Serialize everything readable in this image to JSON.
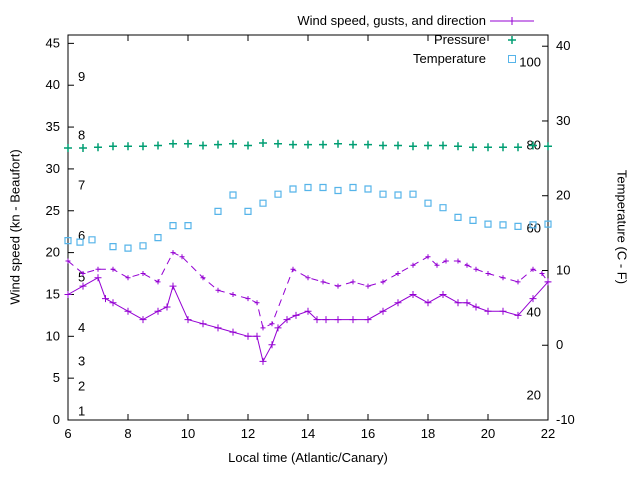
{
  "chart_data": {
    "type": "line",
    "title": "",
    "xlabel": "Local time (Atlantic/Canary)",
    "ylabel_left": "Wind speed (kn - Beaufort)",
    "ylabel_right": "Temperature (C - F)",
    "xlim": [
      6,
      22
    ],
    "ylim_left": [
      0,
      46
    ],
    "ylim_right": [
      -10,
      41.5
    ],
    "x_ticks": [
      6,
      8,
      10,
      12,
      14,
      16,
      18,
      20,
      22
    ],
    "y_ticks_left": [
      0,
      5,
      10,
      15,
      20,
      25,
      30,
      35,
      40,
      45
    ],
    "y_ticks_right": [
      -10,
      0,
      10,
      20,
      30,
      40
    ],
    "grid": false,
    "legend_position": "top-right-inside",
    "beaufort_labels": [
      {
        "text": "1",
        "kn": 1
      },
      {
        "text": "2",
        "kn": 4
      },
      {
        "text": "3",
        "kn": 7
      },
      {
        "text": "4",
        "kn": 11
      },
      {
        "text": "5",
        "kn": 17
      },
      {
        "text": "6",
        "kn": 22
      },
      {
        "text": "7",
        "kn": 28
      },
      {
        "text": "8",
        "kn": 34
      },
      {
        "text": "9",
        "kn": 41
      }
    ],
    "fahrenheit_labels": [
      {
        "text": "20",
        "c": -6.7
      },
      {
        "text": "40",
        "c": 4.4
      },
      {
        "text": "60",
        "c": 15.6
      },
      {
        "text": "80",
        "c": 26.7
      },
      {
        "text": "100",
        "c": 37.8
      }
    ],
    "legend": [
      {
        "label": "Wind speed, gusts, and direction",
        "color": "#9400d3",
        "marker": "line-plus"
      },
      {
        "label": "Pressure",
        "color": "#009e73",
        "marker": "plus"
      },
      {
        "label": "Temperature",
        "color": "#56b4e9",
        "marker": "square"
      }
    ],
    "series": [
      {
        "name": "wind_speed",
        "axis": "left",
        "color": "#9400d3",
        "style": "solid-line-plus",
        "points": [
          [
            6,
            15
          ],
          [
            6.5,
            16
          ],
          [
            7,
            17
          ],
          [
            7.25,
            14.5
          ],
          [
            7.5,
            14
          ],
          [
            8,
            13
          ],
          [
            8.5,
            12
          ],
          [
            9,
            13
          ],
          [
            9.3,
            13.5
          ],
          [
            9.5,
            16
          ],
          [
            10,
            12
          ],
          [
            10.5,
            11.5
          ],
          [
            11,
            11
          ],
          [
            11.5,
            10.5
          ],
          [
            12,
            10
          ],
          [
            12.3,
            10
          ],
          [
            12.5,
            7
          ],
          [
            12.8,
            9
          ],
          [
            13,
            11
          ],
          [
            13.3,
            12
          ],
          [
            13.6,
            12.5
          ],
          [
            14,
            13
          ],
          [
            14.3,
            12
          ],
          [
            14.6,
            12
          ],
          [
            15,
            12
          ],
          [
            15.5,
            12
          ],
          [
            16,
            12
          ],
          [
            16.5,
            13
          ],
          [
            17,
            14
          ],
          [
            17.5,
            15
          ],
          [
            18,
            14
          ],
          [
            18.5,
            15
          ],
          [
            19,
            14
          ],
          [
            19.3,
            14
          ],
          [
            19.6,
            13.5
          ],
          [
            20,
            13
          ],
          [
            20.5,
            13
          ],
          [
            21,
            12.5
          ],
          [
            21.5,
            14.5
          ],
          [
            22,
            16.5
          ]
        ]
      },
      {
        "name": "gusts",
        "axis": "left",
        "color": "#9400d3",
        "style": "dashed-line-plus",
        "points": [
          [
            6,
            19
          ],
          [
            6.5,
            17.5
          ],
          [
            7,
            18
          ],
          [
            7.5,
            18
          ],
          [
            8,
            17
          ],
          [
            8.5,
            17.5
          ],
          [
            9,
            16.5
          ],
          [
            9.5,
            20
          ],
          [
            9.8,
            19.5
          ],
          [
            10.5,
            17
          ],
          [
            11,
            15.5
          ],
          [
            11.5,
            15
          ],
          [
            12,
            14.5
          ],
          [
            12.3,
            14
          ],
          [
            12.5,
            11
          ],
          [
            12.8,
            11.5
          ],
          [
            13.5,
            18
          ],
          [
            14,
            17
          ],
          [
            14.5,
            16.5
          ],
          [
            15,
            16
          ],
          [
            15.5,
            16.5
          ],
          [
            16,
            16
          ],
          [
            16.5,
            16.5
          ],
          [
            17,
            17.5
          ],
          [
            17.5,
            18.5
          ],
          [
            18,
            19.5
          ],
          [
            18.3,
            18.5
          ],
          [
            18.6,
            19
          ],
          [
            19,
            19
          ],
          [
            19.3,
            18.5
          ],
          [
            19.6,
            18
          ],
          [
            20,
            17.5
          ],
          [
            20.5,
            17
          ],
          [
            21,
            16.5
          ],
          [
            21.5,
            18
          ],
          [
            21.8,
            17.5
          ],
          [
            22,
            16.5
          ]
        ]
      },
      {
        "name": "pressure",
        "axis": "left",
        "color": "#009e73",
        "style": "points-plus",
        "points": [
          [
            6,
            32.5
          ],
          [
            6.5,
            32.5
          ],
          [
            7,
            32.6
          ],
          [
            7.5,
            32.7
          ],
          [
            8,
            32.7
          ],
          [
            8.5,
            32.7
          ],
          [
            9,
            32.8
          ],
          [
            9.5,
            33
          ],
          [
            10,
            33
          ],
          [
            10.5,
            32.8
          ],
          [
            11,
            32.9
          ],
          [
            11.5,
            33
          ],
          [
            12,
            32.8
          ],
          [
            12.5,
            33.1
          ],
          [
            13,
            33
          ],
          [
            13.5,
            32.9
          ],
          [
            14,
            32.9
          ],
          [
            14.5,
            32.9
          ],
          [
            15,
            33
          ],
          [
            15.5,
            32.9
          ],
          [
            16,
            32.9
          ],
          [
            16.5,
            32.8
          ],
          [
            17,
            32.8
          ],
          [
            17.5,
            32.7
          ],
          [
            18,
            32.8
          ],
          [
            18.5,
            32.8
          ],
          [
            19,
            32.7
          ],
          [
            19.5,
            32.6
          ],
          [
            20,
            32.6
          ],
          [
            20.5,
            32.6
          ],
          [
            21,
            32.6
          ],
          [
            21.5,
            32.8
          ],
          [
            22,
            32.7
          ]
        ]
      },
      {
        "name": "temperature",
        "axis": "right",
        "color": "#56b4e9",
        "style": "points-square",
        "points": [
          [
            6,
            14
          ],
          [
            6.4,
            13.8
          ],
          [
            6.8,
            14.1
          ],
          [
            7.5,
            13.2
          ],
          [
            8,
            13
          ],
          [
            8.5,
            13.3
          ],
          [
            9,
            14.4
          ],
          [
            9.5,
            16
          ],
          [
            10,
            16
          ],
          [
            11,
            17.9
          ],
          [
            11.5,
            20.1
          ],
          [
            12,
            17.9
          ],
          [
            12.5,
            19
          ],
          [
            13,
            20.2
          ],
          [
            13.5,
            20.9
          ],
          [
            14,
            21.1
          ],
          [
            14.5,
            21.1
          ],
          [
            15,
            20.7
          ],
          [
            15.5,
            21.1
          ],
          [
            16,
            20.9
          ],
          [
            16.5,
            20.2
          ],
          [
            17,
            20.1
          ],
          [
            17.5,
            20.2
          ],
          [
            18,
            19
          ],
          [
            18.5,
            18.4
          ],
          [
            19,
            17.1
          ],
          [
            19.5,
            16.7
          ],
          [
            20,
            16.2
          ],
          [
            20.5,
            16.1
          ],
          [
            21,
            15.9
          ],
          [
            21.5,
            16.1
          ],
          [
            22,
            16.2
          ]
        ]
      }
    ]
  }
}
